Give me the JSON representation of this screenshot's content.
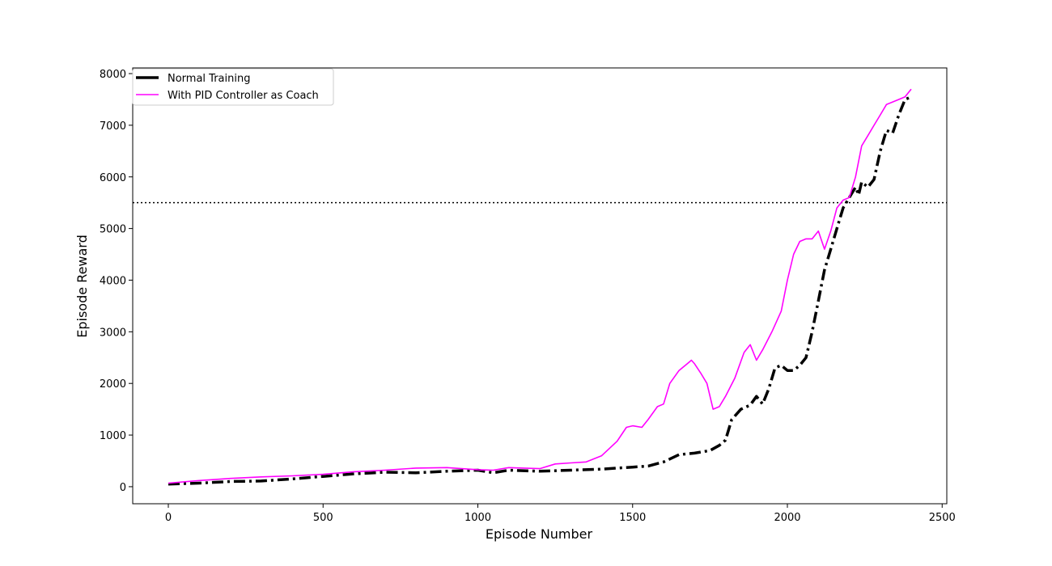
{
  "chart_data": {
    "type": "line",
    "title": "",
    "xlabel": "Episode Number",
    "ylabel": "Episode Reward",
    "xlim": [
      -115,
      2515
    ],
    "ylim": [
      -330,
      8110
    ],
    "xticks": [
      0,
      500,
      1000,
      1500,
      2000,
      2500
    ],
    "yticks": [
      0,
      1000,
      2000,
      3000,
      4000,
      5000,
      6000,
      7000,
      8000
    ],
    "grid": false,
    "legend_position": "upper-left",
    "reference_line": {
      "y": 5500,
      "style": "dotted",
      "color": "#000000"
    },
    "series": [
      {
        "name": "Normal Training",
        "color": "#000000",
        "style": "dashdot",
        "x": [
          0,
          100,
          200,
          300,
          400,
          500,
          600,
          700,
          800,
          900,
          1000,
          1050,
          1100,
          1200,
          1300,
          1400,
          1450,
          1500,
          1550,
          1600,
          1650,
          1700,
          1750,
          1780,
          1800,
          1820,
          1850,
          1880,
          1900,
          1920,
          1940,
          1960,
          1980,
          2000,
          2020,
          2040,
          2060,
          2080,
          2100,
          2120,
          2140,
          2160,
          2180,
          2200,
          2220,
          2230,
          2240,
          2260,
          2280,
          2300,
          2320,
          2340,
          2360,
          2380,
          2400
        ],
        "y": [
          50,
          70,
          100,
          110,
          150,
          200,
          250,
          280,
          270,
          300,
          320,
          270,
          320,
          300,
          320,
          340,
          360,
          380,
          400,
          480,
          620,
          650,
          700,
          800,
          900,
          1300,
          1500,
          1580,
          1750,
          1600,
          1900,
          2300,
          2350,
          2250,
          2250,
          2350,
          2500,
          3000,
          3600,
          4200,
          4600,
          5000,
          5400,
          5600,
          5800,
          5650,
          5900,
          5800,
          5950,
          6500,
          6900,
          6850,
          7200,
          7500,
          7550
        ]
      },
      {
        "name": "With PID Controller as Coach",
        "color": "#ff00ff",
        "style": "solid",
        "x": [
          0,
          100,
          200,
          300,
          400,
          500,
          600,
          700,
          800,
          900,
          1000,
          1050,
          1100,
          1200,
          1250,
          1300,
          1350,
          1400,
          1450,
          1480,
          1500,
          1530,
          1550,
          1580,
          1600,
          1620,
          1650,
          1680,
          1690,
          1700,
          1720,
          1740,
          1760,
          1780,
          1800,
          1830,
          1860,
          1880,
          1900,
          1920,
          1950,
          1980,
          2000,
          2020,
          2040,
          2060,
          2080,
          2100,
          2120,
          2140,
          2160,
          2180,
          2200,
          2220,
          2240,
          2260,
          2280,
          2300,
          2320,
          2340,
          2360,
          2380,
          2400
        ],
        "y": [
          70,
          120,
          160,
          190,
          210,
          240,
          290,
          320,
          360,
          370,
          330,
          320,
          370,
          350,
          440,
          460,
          480,
          600,
          880,
          1150,
          1180,
          1150,
          1300,
          1550,
          1600,
          2000,
          2250,
          2400,
          2450,
          2380,
          2200,
          2000,
          1500,
          1550,
          1750,
          2100,
          2600,
          2750,
          2450,
          2650,
          3000,
          3400,
          4000,
          4500,
          4750,
          4800,
          4800,
          4950,
          4600,
          4950,
          5400,
          5550,
          5600,
          6000,
          6600,
          6800,
          7000,
          7200,
          7400,
          7450,
          7500,
          7550,
          7700
        ]
      }
    ]
  }
}
